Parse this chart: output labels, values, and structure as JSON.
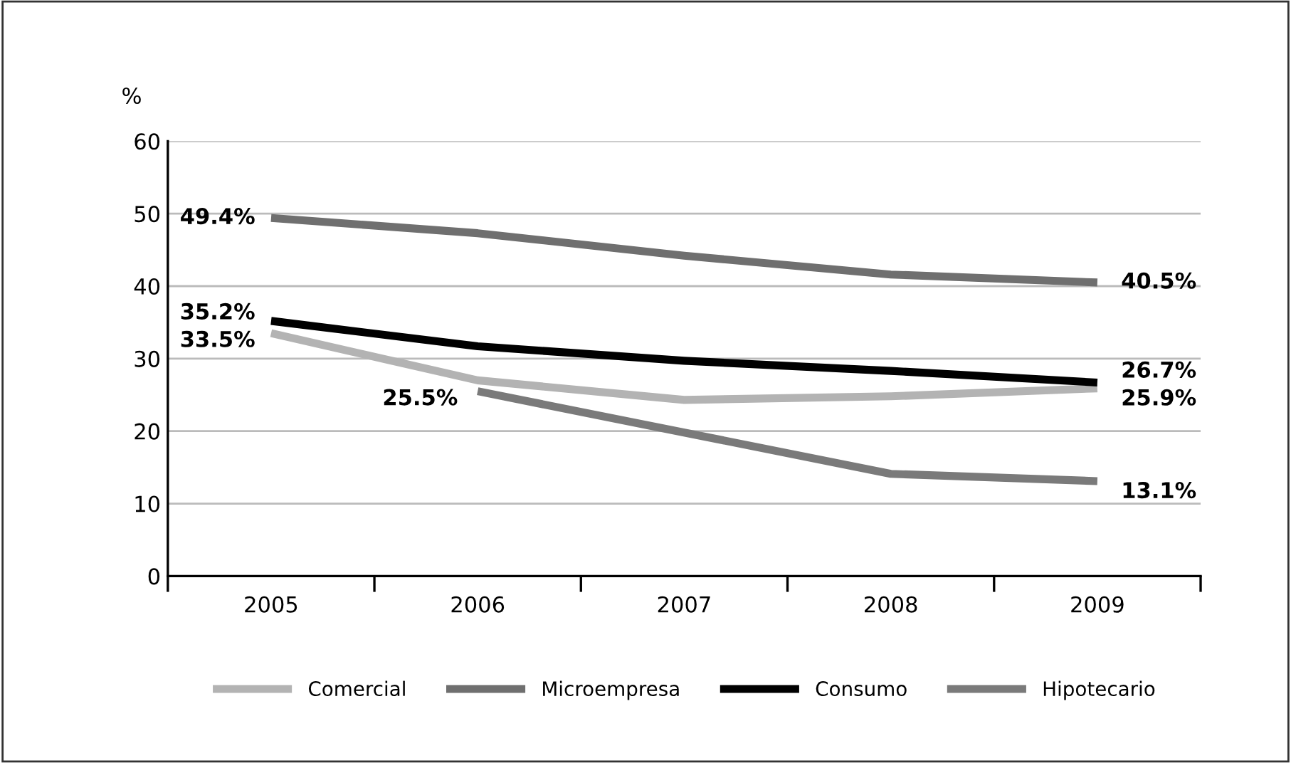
{
  "chart_data": {
    "type": "line",
    "ylabel": "%",
    "categories": [
      "2005",
      "2006",
      "2007",
      "2008",
      "2009"
    ],
    "series": [
      {
        "name": "Comercial",
        "color": "#b3b3b3",
        "values": [
          33.5,
          27,
          24.3,
          24.8,
          25.9
        ],
        "value_labels": [
          "33.5%",
          null,
          null,
          null,
          "25.9%"
        ]
      },
      {
        "name": "Microempresa",
        "color": "#6f6f6f",
        "values": [
          49.4,
          47.3,
          44.2,
          41.6,
          40.5
        ],
        "value_labels": [
          "49.4%",
          null,
          null,
          null,
          "40.5%"
        ]
      },
      {
        "name": "Consumo",
        "color": "#000000",
        "values": [
          35.2,
          31.7,
          29.7,
          28.3,
          26.7
        ],
        "value_labels": [
          "35.2%",
          null,
          null,
          null,
          "26.7%"
        ]
      },
      {
        "name": "Hipotecario",
        "color": "#7a7a7a",
        "values": [
          null,
          25.5,
          19.8,
          14.1,
          13.1
        ],
        "value_labels": [
          null,
          "25.5%",
          null,
          null,
          "13.1%"
        ]
      }
    ],
    "ylim": [
      0,
      60
    ],
    "yticks": [
      0,
      10,
      20,
      30,
      40,
      50,
      60
    ],
    "grid": "y",
    "legend": "bottom",
    "marker": "none",
    "line_style": "solid"
  }
}
